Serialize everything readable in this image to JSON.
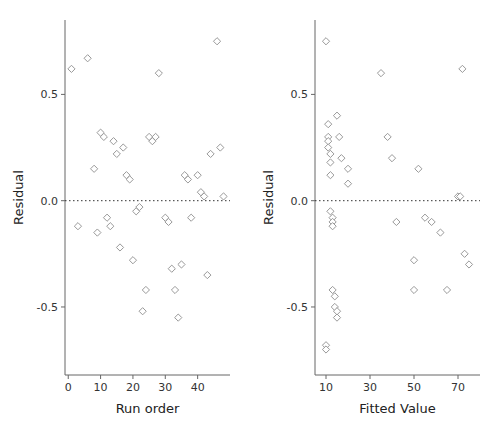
{
  "chart_data": [
    {
      "type": "scatter",
      "xlabel": "Run order",
      "ylabel": "Residual",
      "x": [
        1,
        3,
        6,
        8,
        9,
        10,
        11,
        12,
        13,
        14,
        15,
        16,
        17,
        18,
        19,
        20,
        21,
        22,
        23,
        24,
        25,
        26,
        27,
        28,
        30,
        31,
        32,
        33,
        34,
        35,
        36,
        37,
        38,
        40,
        41,
        42,
        43,
        44,
        46,
        47,
        48
      ],
      "values": [
        0.62,
        -0.12,
        0.67,
        0.15,
        -0.15,
        0.32,
        0.3,
        -0.08,
        -0.12,
        0.28,
        0.22,
        -0.22,
        0.25,
        0.12,
        0.1,
        -0.28,
        -0.05,
        -0.03,
        -0.52,
        -0.42,
        0.3,
        0.28,
        0.3,
        0.6,
        -0.08,
        -0.1,
        -0.32,
        -0.42,
        -0.55,
        -0.3,
        0.12,
        0.1,
        -0.08,
        0.12,
        0.04,
        0.02,
        -0.35,
        0.22,
        0.75,
        0.25,
        0.02
      ],
      "xlim": [
        -1,
        50
      ],
      "xticks": [
        0,
        10,
        20,
        30,
        40
      ],
      "ylim": [
        -0.82,
        0.85
      ],
      "yticks": [
        -0.5,
        {
          "value": 0,
          "label": "0.0"
        },
        0.5
      ],
      "hline": {
        "y": 0,
        "line_style": "dotted",
        "color": "#333333"
      },
      "marker": "diamond",
      "color": "#999999",
      "grid": false
    },
    {
      "type": "scatter",
      "xlabel": "Fitted Value",
      "ylabel": "Residual",
      "x": [
        10,
        10,
        10,
        11,
        11,
        11,
        11,
        12,
        12,
        12,
        12,
        13,
        13,
        13,
        13,
        14,
        14,
        15,
        15,
        15,
        16,
        17,
        20,
        20,
        35,
        38,
        40,
        42,
        50,
        50,
        52,
        55,
        58,
        62,
        65,
        70,
        71,
        72,
        73,
        75
      ],
      "values": [
        -0.68,
        -0.7,
        0.75,
        0.36,
        0.3,
        0.28,
        0.25,
        0.22,
        0.18,
        0.12,
        -0.05,
        -0.08,
        -0.1,
        -0.12,
        -0.42,
        -0.45,
        -0.5,
        -0.52,
        -0.55,
        0.4,
        0.3,
        0.2,
        0.15,
        0.08,
        0.6,
        0.3,
        0.2,
        -0.1,
        -0.42,
        -0.28,
        0.15,
        -0.08,
        -0.1,
        -0.15,
        -0.42,
        0.02,
        0.02,
        0.62,
        -0.25,
        -0.3
      ],
      "xlim": [
        5,
        80
      ],
      "xticks": [
        10,
        30,
        50,
        70
      ],
      "ylim": [
        -0.82,
        0.85
      ],
      "yticks": [
        -0.5,
        {
          "value": 0,
          "label": "0.0"
        },
        0.5
      ],
      "hline": {
        "y": 0,
        "line_style": "dotted",
        "color": "#333333"
      },
      "marker": "diamond",
      "color": "#999999",
      "grid": false
    }
  ]
}
